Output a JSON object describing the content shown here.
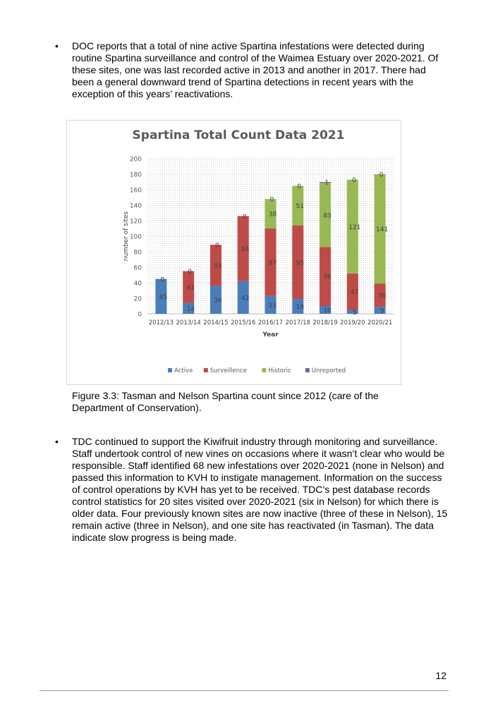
{
  "bullets": [
    {
      "marker": "•",
      "text": "DOC reports that a total of nine active Spartina infestations were detected during routine Spartina surveillance and control of the Waimea Estuary over 2020-2021. Of these sites, one was last recorded active in 2013 and another in 2017. There had been a general downward trend of Spartina detections in recent years with the exception of this years’ reactivations."
    },
    {
      "marker": "•",
      "text": "TDC continued to support the Kiwifruit industry through monitoring and surveillance. Staff undertook control of new vines on occasions where it wasn’t clear who would be responsible. Staff identified 68 new infestations over 2020-2021 (none in Nelson) and passed this information to KVH to instigate management. Information on the success of control operations by KVH has yet to be received. TDC’s pest database records control statistics for 20 sites visited over 2020-2021 (six in Nelson) for which there is older data. Four previously known sites are now inactive (three of these in Nelson), 15 remain active (three in Nelson), and one site has reactivated (in Tasman). The data indicate slow progress is being made."
    }
  ],
  "caption": "Figure 3.3: Tasman and Nelson Spartina count since 2012 (care of the Department of Conservation).",
  "page_number": "12",
  "chart_data": {
    "type": "bar",
    "stacked": true,
    "title": "Spartina Total Count Data 2021",
    "xlabel": "Year",
    "ylabel": "number of sites",
    "ylim": [
      0,
      200
    ],
    "yticks": [
      0,
      20,
      40,
      60,
      80,
      100,
      120,
      140,
      160,
      180,
      200
    ],
    "grid": true,
    "legend_position": "bottom",
    "categories": [
      "2012/13",
      "2013/14",
      "2014/15",
      "2015/16",
      "2016/17",
      "2017/18",
      "2018/19",
      "2019/20",
      "2020/21"
    ],
    "series": [
      {
        "name": "Active",
        "color": "#4a7ebb",
        "values": [
          45,
          14,
          36,
          42,
          23,
          19,
          10,
          5,
          9
        ]
      },
      {
        "name": "Surveillence",
        "color": "#be4b48",
        "values": [
          0,
          41,
          53,
          84,
          87,
          95,
          76,
          47,
          30
        ]
      },
      {
        "name": "Historic",
        "color": "#98b954",
        "values": [
          0,
          0,
          0,
          0,
          38,
          51,
          83,
          121,
          141
        ]
      },
      {
        "name": "Unreported",
        "color": "#7d60a0",
        "values": [
          0,
          0,
          0,
          0,
          0,
          0,
          1,
          0,
          0
        ]
      }
    ],
    "top_labels": [
      "0",
      "0",
      "0",
      "0",
      "0",
      "0",
      "1",
      "0",
      "0"
    ]
  }
}
